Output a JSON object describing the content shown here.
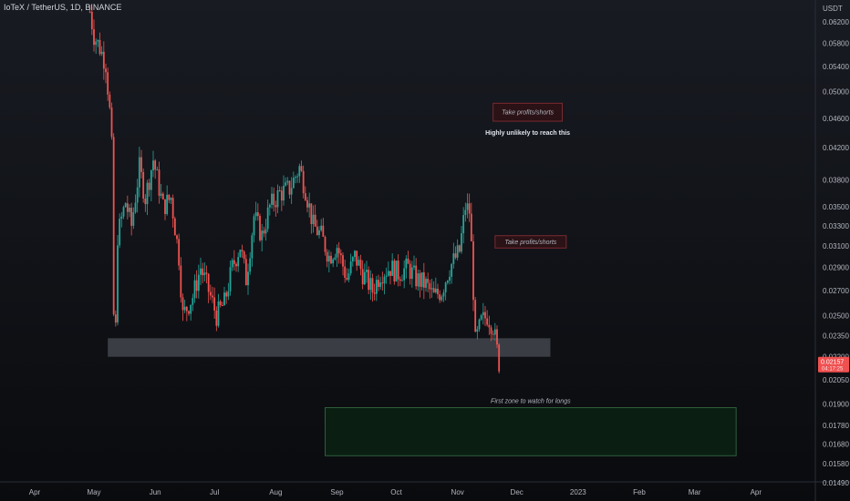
{
  "header": {
    "symbol_title": "IoTeX / TetherUS, 1D, BINANCE"
  },
  "colors": {
    "background": "#131722",
    "up": "#26a69a",
    "down": "#ef5350",
    "support_zone": "#3a3d44",
    "long_zone_fill": "#0a1f12",
    "long_zone_border": "#2e5e3a",
    "tp_fill": "#2a1216",
    "tp_border": "#7a2a2e",
    "price_badge": "#f05050"
  },
  "chart_data": {
    "type": "candlestick",
    "price_scale": "log",
    "y_axis": {
      "unit_label": "USDT",
      "ticks": [
        "0.06200",
        "0.05800",
        "0.05400",
        "0.05000",
        "0.04600",
        "0.04200",
        "0.03800",
        "0.03500",
        "0.03300",
        "0.03100",
        "0.02900",
        "0.02700",
        "0.02500",
        "0.02350",
        "0.02200",
        "0.02050",
        "0.01900",
        "0.01780",
        "0.01680",
        "0.01580",
        "0.01490"
      ],
      "current_price_badge": "0.02157",
      "badge_subtext": "04:17:25"
    },
    "x_axis": {
      "ticks": [
        "Apr",
        "May",
        "Jun",
        "Jul",
        "Aug",
        "Sep",
        "Oct",
        "Nov",
        "Dec",
        "2023",
        "Feb",
        "Mar",
        "Apr"
      ]
    },
    "price_path": [
      {
        "date": "2022-04-29",
        "price": 0.064
      },
      {
        "date": "2022-05-01",
        "price": 0.0595
      },
      {
        "date": "2022-05-04",
        "price": 0.0572
      },
      {
        "date": "2022-05-07",
        "price": 0.0545
      },
      {
        "date": "2022-05-09",
        "price": 0.047
      },
      {
        "date": "2022-05-10",
        "price": 0.042
      },
      {
        "date": "2022-05-11",
        "price": 0.025
      },
      {
        "date": "2022-05-12",
        "price": 0.024
      },
      {
        "date": "2022-05-13",
        "price": 0.032
      },
      {
        "date": "2022-05-17",
        "price": 0.0355
      },
      {
        "date": "2022-05-20",
        "price": 0.033
      },
      {
        "date": "2022-05-24",
        "price": 0.0395
      },
      {
        "date": "2022-05-27",
        "price": 0.036
      },
      {
        "date": "2022-05-31",
        "price": 0.0405
      },
      {
        "date": "2022-06-05",
        "price": 0.035
      },
      {
        "date": "2022-06-09",
        "price": 0.036
      },
      {
        "date": "2022-06-13",
        "price": 0.03
      },
      {
        "date": "2022-06-15",
        "price": 0.025
      },
      {
        "date": "2022-06-20",
        "price": 0.0265
      },
      {
        "date": "2022-06-24",
        "price": 0.029
      },
      {
        "date": "2022-06-28",
        "price": 0.027
      },
      {
        "date": "2022-07-02",
        "price": 0.025
      },
      {
        "date": "2022-07-06",
        "price": 0.026
      },
      {
        "date": "2022-07-10",
        "price": 0.029
      },
      {
        "date": "2022-07-14",
        "price": 0.031
      },
      {
        "date": "2022-07-17",
        "price": 0.028
      },
      {
        "date": "2022-07-21",
        "price": 0.034
      },
      {
        "date": "2022-07-25",
        "price": 0.032
      },
      {
        "date": "2022-07-29",
        "price": 0.035
      },
      {
        "date": "2022-08-03",
        "price": 0.0365
      },
      {
        "date": "2022-08-08",
        "price": 0.037
      },
      {
        "date": "2022-08-13",
        "price": 0.0395
      },
      {
        "date": "2022-08-16",
        "price": 0.037
      },
      {
        "date": "2022-08-20",
        "price": 0.033
      },
      {
        "date": "2022-08-24",
        "price": 0.032
      },
      {
        "date": "2022-08-28",
        "price": 0.03
      },
      {
        "date": "2022-09-01",
        "price": 0.031
      },
      {
        "date": "2022-09-06",
        "price": 0.028
      },
      {
        "date": "2022-09-10",
        "price": 0.03
      },
      {
        "date": "2022-09-14",
        "price": 0.0285
      },
      {
        "date": "2022-09-19",
        "price": 0.027
      },
      {
        "date": "2022-09-23",
        "price": 0.0285
      },
      {
        "date": "2022-09-28",
        "price": 0.029
      },
      {
        "date": "2022-10-02",
        "price": 0.0285
      },
      {
        "date": "2022-10-07",
        "price": 0.029
      },
      {
        "date": "2022-10-11",
        "price": 0.028
      },
      {
        "date": "2022-10-16",
        "price": 0.0275
      },
      {
        "date": "2022-10-20",
        "price": 0.0265
      },
      {
        "date": "2022-10-24",
        "price": 0.027
      },
      {
        "date": "2022-10-28",
        "price": 0.029
      },
      {
        "date": "2022-11-02",
        "price": 0.0305
      },
      {
        "date": "2022-11-05",
        "price": 0.035
      },
      {
        "date": "2022-11-07",
        "price": 0.0345
      },
      {
        "date": "2022-11-08",
        "price": 0.031
      },
      {
        "date": "2022-11-09",
        "price": 0.027
      },
      {
        "date": "2022-11-10",
        "price": 0.023
      },
      {
        "date": "2022-11-13",
        "price": 0.0245
      },
      {
        "date": "2022-11-16",
        "price": 0.025
      },
      {
        "date": "2022-11-19",
        "price": 0.0242
      },
      {
        "date": "2022-11-22",
        "price": 0.0216
      }
    ],
    "zones": {
      "support": {
        "price_top": 0.0233,
        "price_bottom": 0.022,
        "start": "2022-05-08",
        "end": "2022-12-18"
      },
      "long_watch": {
        "price_top": 0.0188,
        "price_bottom": 0.0162,
        "start": "2022-08-26",
        "end": "2023-03-22",
        "label": "First zone to watch for longs"
      },
      "tp1": {
        "price_top": 0.032,
        "price_bottom": 0.0308,
        "start": "2022-11-20",
        "end": "2022-12-26",
        "label": "Take profits/shorts"
      },
      "tp2": {
        "price_top": 0.0482,
        "price_bottom": 0.0456,
        "start": "2022-11-19",
        "end": "2022-12-24",
        "label": "Take profits/shorts",
        "note": "Highly unlikely to reach this"
      }
    }
  }
}
